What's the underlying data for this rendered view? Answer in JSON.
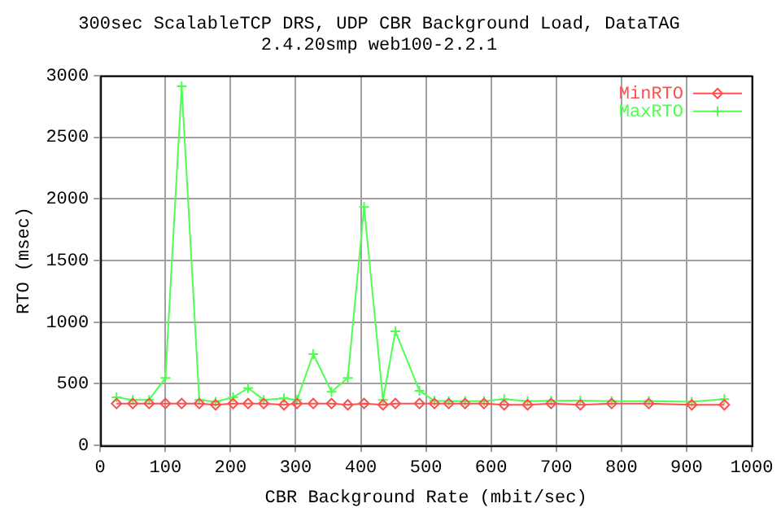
{
  "chart_data": {
    "type": "line",
    "title": "300sec ScalableTCP DRS, UDP CBR Background Load, DataTAG",
    "subtitle": "2.4.20smp web100-2.2.1",
    "xlabel": "CBR Background Rate (mbit/sec)",
    "ylabel": "RTO (msec)",
    "x": [
      25,
      50,
      75,
      100,
      125,
      152,
      177,
      204,
      227,
      251,
      282,
      302,
      327,
      355,
      380,
      405,
      434,
      453,
      490,
      513,
      535,
      560,
      589,
      620,
      656,
      692,
      737,
      785,
      842,
      908,
      958
    ],
    "series": [
      {
        "name": "MinRTO",
        "color": "#ff4f4f",
        "marker": "diamond",
        "values": [
          340,
          340,
          340,
          340,
          340,
          340,
          330,
          340,
          340,
          340,
          330,
          340,
          340,
          340,
          330,
          340,
          330,
          340,
          340,
          340,
          340,
          340,
          340,
          330,
          330,
          340,
          330,
          340,
          340,
          330,
          330
        ]
      },
      {
        "name": "MaxRTO",
        "color": "#4fff4f",
        "marker": "cross",
        "values": [
          391,
          370,
          370,
          547,
          2913,
          370,
          354,
          391,
          465,
          370,
          383,
          370,
          741,
          436,
          547,
          1934,
          370,
          926,
          444,
          362,
          360,
          360,
          360,
          376,
          360,
          362,
          364,
          360,
          360,
          355,
          376
        ]
      }
    ],
    "xlim": [
      0,
      1000
    ],
    "xticks": [
      0,
      100,
      200,
      300,
      400,
      500,
      600,
      700,
      800,
      900,
      1000
    ],
    "ylim": [
      0,
      3000
    ],
    "yticks": [
      0,
      500,
      1000,
      1500,
      2000,
      2500,
      3000
    ],
    "grid": true,
    "legend": "top right"
  }
}
